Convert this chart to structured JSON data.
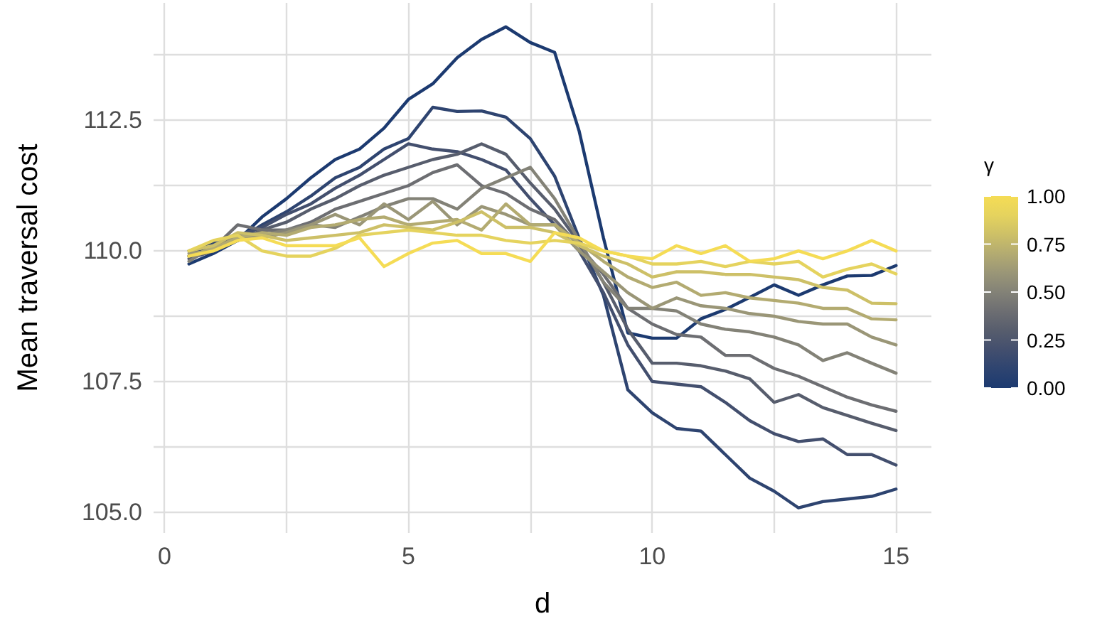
{
  "chart_data": {
    "type": "line",
    "xlabel": "d",
    "ylabel": "Mean traversal cost",
    "clabel": "γ",
    "clim": [
      0,
      1
    ],
    "cticks": [
      {
        "value": 0,
        "label": "0.00"
      },
      {
        "value": 0.25,
        "label": "0.25"
      },
      {
        "value": 0.5,
        "label": "0.50"
      },
      {
        "value": 0.75,
        "label": "0.75"
      },
      {
        "value": 1,
        "label": "1.00"
      }
    ],
    "x": [
      0.5,
      1,
      1.5,
      2,
      2.5,
      3,
      3.5,
      4,
      4.5,
      5,
      5.5,
      6,
      6.5,
      7,
      7.5,
      8,
      8.5,
      9,
      9.5,
      10,
      10.5,
      11,
      11.5,
      12,
      12.5,
      13,
      13.5,
      14,
      14.5,
      15
    ],
    "xlim": [
      -0.225,
      15.725
    ],
    "xticks": [
      0,
      {
        "value": 2.5,
        "label": null
      },
      5,
      {
        "value": 7.5,
        "label": null
      },
      10,
      {
        "value": 12.5,
        "label": null
      },
      15
    ],
    "ylim": [
      104.6,
      114.75
    ],
    "yticks": [
      {
        "value": 105,
        "label": "105.0"
      },
      {
        "value": 106.25,
        "label": null
      },
      {
        "value": 107.5,
        "label": "107.5"
      },
      {
        "value": 108.75,
        "label": null
      },
      {
        "value": 110,
        "label": "110.0"
      },
      {
        "value": 111.25,
        "label": null
      },
      {
        "value": 112.5,
        "label": "112.5"
      },
      {
        "value": 113.75,
        "label": null
      }
    ],
    "grid": true,
    "marker": "none",
    "line_style": "solid",
    "series": [
      {
        "color": "#1c3a70",
        "values": [
          109.75,
          109.95,
          110.2,
          110.65,
          111.0,
          111.4,
          111.75,
          111.95,
          112.35,
          112.9,
          113.2,
          113.7,
          114.05,
          114.29,
          113.99,
          113.8,
          112.3,
          110.25,
          108.43,
          108.33,
          108.33,
          108.7,
          108.88,
          109.11,
          109.35,
          109.15,
          109.35,
          109.52,
          109.53,
          109.72
        ]
      },
      {
        "color": "#2e4470",
        "values": [
          109.9,
          110.15,
          110.2,
          110.5,
          110.75,
          111.05,
          111.4,
          111.6,
          111.95,
          112.15,
          112.75,
          112.67,
          112.68,
          112.56,
          112.15,
          111.43,
          110.25,
          109.15,
          107.34,
          106.9,
          106.6,
          106.55,
          106.1,
          105.65,
          105.4,
          105.08,
          105.2,
          105.25,
          105.3,
          105.44
        ]
      },
      {
        "color": "#434f6e",
        "values": [
          110.0,
          110.1,
          110.3,
          110.45,
          110.7,
          110.9,
          111.2,
          111.45,
          111.75,
          112.05,
          111.95,
          111.9,
          111.75,
          111.55,
          111.0,
          110.5,
          110.0,
          109.2,
          108.2,
          107.5,
          107.45,
          107.4,
          107.1,
          106.75,
          106.5,
          106.35,
          106.4,
          106.1,
          106.1,
          105.9
        ]
      },
      {
        "color": "#575d6d",
        "values": [
          109.85,
          110.0,
          110.2,
          110.4,
          110.55,
          110.8,
          111.0,
          111.25,
          111.45,
          111.6,
          111.75,
          111.85,
          112.05,
          111.85,
          111.3,
          110.8,
          110.15,
          109.4,
          108.5,
          107.85,
          107.85,
          107.8,
          107.7,
          107.55,
          107.1,
          107.25,
          107.0,
          106.85,
          106.7,
          106.56
        ]
      },
      {
        "color": "#6d6e72",
        "values": [
          109.9,
          110.05,
          110.5,
          110.4,
          110.4,
          110.55,
          110.8,
          110.95,
          111.1,
          111.25,
          111.5,
          111.65,
          111.25,
          111.1,
          110.8,
          110.6,
          110.1,
          109.55,
          108.9,
          108.6,
          108.4,
          108.35,
          108.0,
          108.0,
          107.75,
          107.6,
          107.4,
          107.2,
          107.05,
          106.93
        ]
      },
      {
        "color": "#838277",
        "values": [
          109.8,
          110.1,
          110.2,
          110.3,
          110.4,
          110.5,
          110.45,
          110.65,
          110.85,
          111.0,
          111.0,
          110.8,
          111.2,
          111.4,
          111.6,
          111.0,
          110.2,
          109.4,
          108.9,
          108.9,
          108.85,
          108.6,
          108.5,
          108.45,
          108.35,
          108.2,
          107.9,
          108.05,
          107.85,
          107.66
        ]
      },
      {
        "color": "#9a9677",
        "values": [
          109.95,
          110.0,
          110.3,
          110.25,
          110.35,
          110.5,
          110.7,
          110.5,
          110.9,
          110.6,
          110.95,
          110.5,
          110.85,
          110.7,
          110.5,
          110.5,
          110.0,
          109.6,
          109.2,
          108.9,
          109.1,
          108.95,
          108.9,
          108.8,
          108.75,
          108.65,
          108.6,
          108.6,
          108.35,
          108.2
        ]
      },
      {
        "color": "#b3ab71",
        "values": [
          109.9,
          110.05,
          110.25,
          110.35,
          110.3,
          110.45,
          110.5,
          110.6,
          110.65,
          110.5,
          110.55,
          110.6,
          110.4,
          110.9,
          110.5,
          110.5,
          110.15,
          109.8,
          109.5,
          109.3,
          109.4,
          109.15,
          109.2,
          109.1,
          109.05,
          109.0,
          108.9,
          108.9,
          108.7,
          108.68
        ]
      },
      {
        "color": "#cdc067",
        "values": [
          110.0,
          110.1,
          110.35,
          110.3,
          110.2,
          110.25,
          110.3,
          110.35,
          110.5,
          110.45,
          110.4,
          110.55,
          110.75,
          110.45,
          110.45,
          110.35,
          110.1,
          109.9,
          109.75,
          109.5,
          109.6,
          109.6,
          109.55,
          109.55,
          109.5,
          109.45,
          109.3,
          109.25,
          109.0,
          108.99
        ]
      },
      {
        "color": "#e5d35e",
        "values": [
          110.0,
          110.2,
          110.3,
          110.0,
          109.9,
          109.9,
          110.05,
          110.3,
          110.35,
          110.4,
          110.35,
          110.3,
          110.3,
          110.2,
          110.15,
          110.2,
          110.15,
          110.0,
          109.9,
          109.75,
          109.75,
          109.8,
          109.7,
          109.8,
          109.75,
          109.8,
          109.5,
          109.65,
          109.75,
          109.56
        ]
      },
      {
        "color": "#f5dc55",
        "values": [
          109.9,
          110.0,
          110.2,
          110.25,
          110.1,
          110.1,
          110.1,
          110.25,
          109.7,
          109.95,
          110.15,
          110.2,
          109.95,
          109.95,
          109.8,
          110.35,
          110.25,
          110.0,
          109.9,
          109.85,
          110.1,
          109.95,
          110.1,
          109.8,
          109.85,
          110.0,
          109.85,
          110.0,
          110.2,
          110.0
        ]
      }
    ]
  }
}
